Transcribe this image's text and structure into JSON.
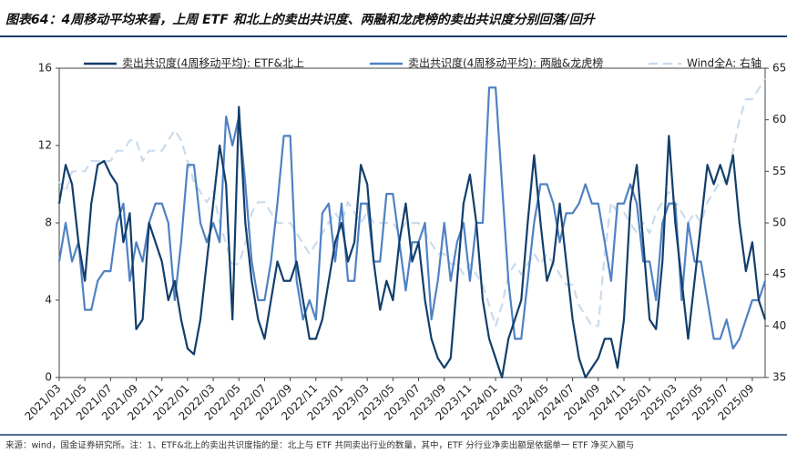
{
  "chart_data": {
    "type": "line",
    "title": "图表64：4周移动平均来看，上周 ETF 和北上的卖出共识度、两融和龙虎榜的卖出共识度分别回落/回升",
    "note": "来源：wind，国金证券研究所。注：1、ETF&北上的卖出共识度指的是：北上与 ETF 共同卖出行业的数量，其中，ETF 分行业净卖出额是依据单一 ETF 净买入额与",
    "categories": [
      "2021/03",
      null,
      null,
      null,
      "2021/05",
      null,
      null,
      null,
      "2021/07",
      null,
      null,
      null,
      "2021/09",
      null,
      null,
      null,
      "2021/11",
      null,
      null,
      null,
      "2022/01",
      null,
      null,
      null,
      "2022/03",
      null,
      null,
      null,
      "2022/05",
      null,
      null,
      null,
      "2022/07",
      null,
      null,
      null,
      "2022/09",
      null,
      null,
      null,
      "2022/11",
      null,
      null,
      null,
      "2023/01",
      null,
      null,
      null,
      "2023/03",
      null,
      null,
      null,
      "2023/05",
      null,
      null,
      null,
      "2023/07",
      null,
      null,
      null,
      "2023/09",
      null,
      null,
      null,
      "2023/11",
      null,
      null,
      null,
      "2024/01",
      null,
      null,
      null,
      "2024/03",
      null,
      null,
      null,
      "2024/05",
      null,
      null,
      null,
      "2024/07",
      null,
      null,
      null,
      "2024/09",
      null,
      null,
      null,
      "2024/11",
      null,
      null,
      null,
      "2025/01",
      null,
      null,
      null,
      "2025/03",
      null,
      null,
      null,
      "2025/05",
      null,
      null,
      null,
      "2025/07",
      null,
      null,
      null,
      "2025/09",
      null,
      null
    ],
    "series": [
      {
        "name": "卖出共识度(4周移动平均): ETF&北上",
        "color": "#123e6b",
        "style": "solid",
        "axis": "y",
        "values": [
          9,
          11,
          10,
          7,
          5,
          9,
          11,
          11.2,
          10.5,
          10,
          7,
          8.5,
          2.5,
          3,
          8,
          7,
          6,
          4,
          5,
          3,
          1.5,
          1.2,
          3,
          6,
          9,
          12,
          10,
          3,
          14,
          8,
          5,
          3,
          2,
          4,
          6,
          5,
          5,
          6,
          4,
          2,
          2,
          3,
          5,
          7,
          8,
          6,
          7,
          11,
          10,
          6,
          3.5,
          5,
          4,
          7,
          9,
          6,
          7,
          4,
          2,
          1,
          0.5,
          1,
          5,
          9,
          10.5,
          8,
          4,
          2,
          1,
          0,
          2,
          3,
          4,
          8,
          11.5,
          8,
          5,
          6,
          9,
          6,
          3,
          1,
          0,
          0.5,
          1,
          2,
          2,
          0.5,
          3,
          9,
          11,
          7,
          3,
          2.5,
          6,
          12.5,
          8,
          5,
          2,
          5,
          8,
          11,
          10,
          11,
          10,
          11.5,
          8,
          5.5,
          7,
          4,
          3
        ]
      },
      {
        "name": "卖出共识度(4周移动平均): 两融&龙虎榜",
        "color": "#4f82c3",
        "style": "solid",
        "axis": "y",
        "values": [
          6,
          8,
          6,
          7,
          3.5,
          3.5,
          5,
          5.5,
          5.5,
          8,
          9,
          5,
          7,
          6,
          8,
          9,
          9,
          8,
          4,
          7,
          11,
          11,
          8,
          7,
          8,
          7,
          13.5,
          12,
          13.5,
          10,
          6,
          4,
          4,
          6,
          9,
          12.5,
          12.5,
          5,
          3,
          4,
          3,
          8.5,
          9,
          6,
          9,
          5,
          5,
          9,
          9,
          6,
          6,
          9.5,
          9.5,
          7,
          4.5,
          7,
          7,
          8,
          3,
          5,
          8,
          5,
          7,
          8,
          5,
          8,
          8,
          15,
          15,
          10,
          5,
          2,
          2,
          5,
          8,
          10,
          10,
          9,
          7,
          8.5,
          8.5,
          9,
          10,
          9,
          9,
          7,
          5,
          9,
          9,
          10,
          9,
          6,
          6,
          4,
          8,
          9,
          9,
          4,
          8,
          6,
          6,
          4,
          2,
          2,
          3,
          1.5,
          2,
          3,
          4,
          4,
          5
        ]
      },
      {
        "name": "Wind全A: 右轴",
        "color": "#c9dbee",
        "style": "dashed",
        "axis": "y2",
        "values": [
          54,
          53,
          55,
          55,
          55,
          56,
          56,
          56,
          56,
          57,
          57,
          58,
          58,
          56,
          57,
          57,
          57,
          58,
          59,
          58,
          56,
          54,
          53,
          52,
          53,
          50,
          48,
          46,
          46,
          48,
          51,
          52,
          52,
          51,
          50,
          50,
          50,
          49,
          48,
          47,
          48,
          49,
          50,
          51,
          50,
          52,
          51,
          50,
          51,
          50,
          50,
          50,
          50,
          49,
          50,
          50,
          50,
          49,
          48,
          47,
          47,
          46,
          46,
          45,
          46,
          45,
          44,
          42,
          40,
          42,
          45,
          46,
          45,
          46,
          47,
          46,
          47,
          46,
          45,
          44,
          44,
          42,
          41,
          40,
          40,
          47,
          52,
          51,
          51,
          50,
          49,
          50,
          49,
          51,
          52,
          53,
          52,
          51,
          50,
          51,
          50,
          52,
          53,
          54,
          54,
          57,
          60,
          62,
          62,
          63,
          64
        ]
      }
    ],
    "ylim": [
      0,
      16
    ],
    "yticks": [
      0,
      4,
      8,
      12,
      16
    ],
    "y2lim": [
      35,
      65
    ],
    "y2ticks": [
      35,
      40,
      45,
      50,
      55,
      60,
      65
    ]
  }
}
